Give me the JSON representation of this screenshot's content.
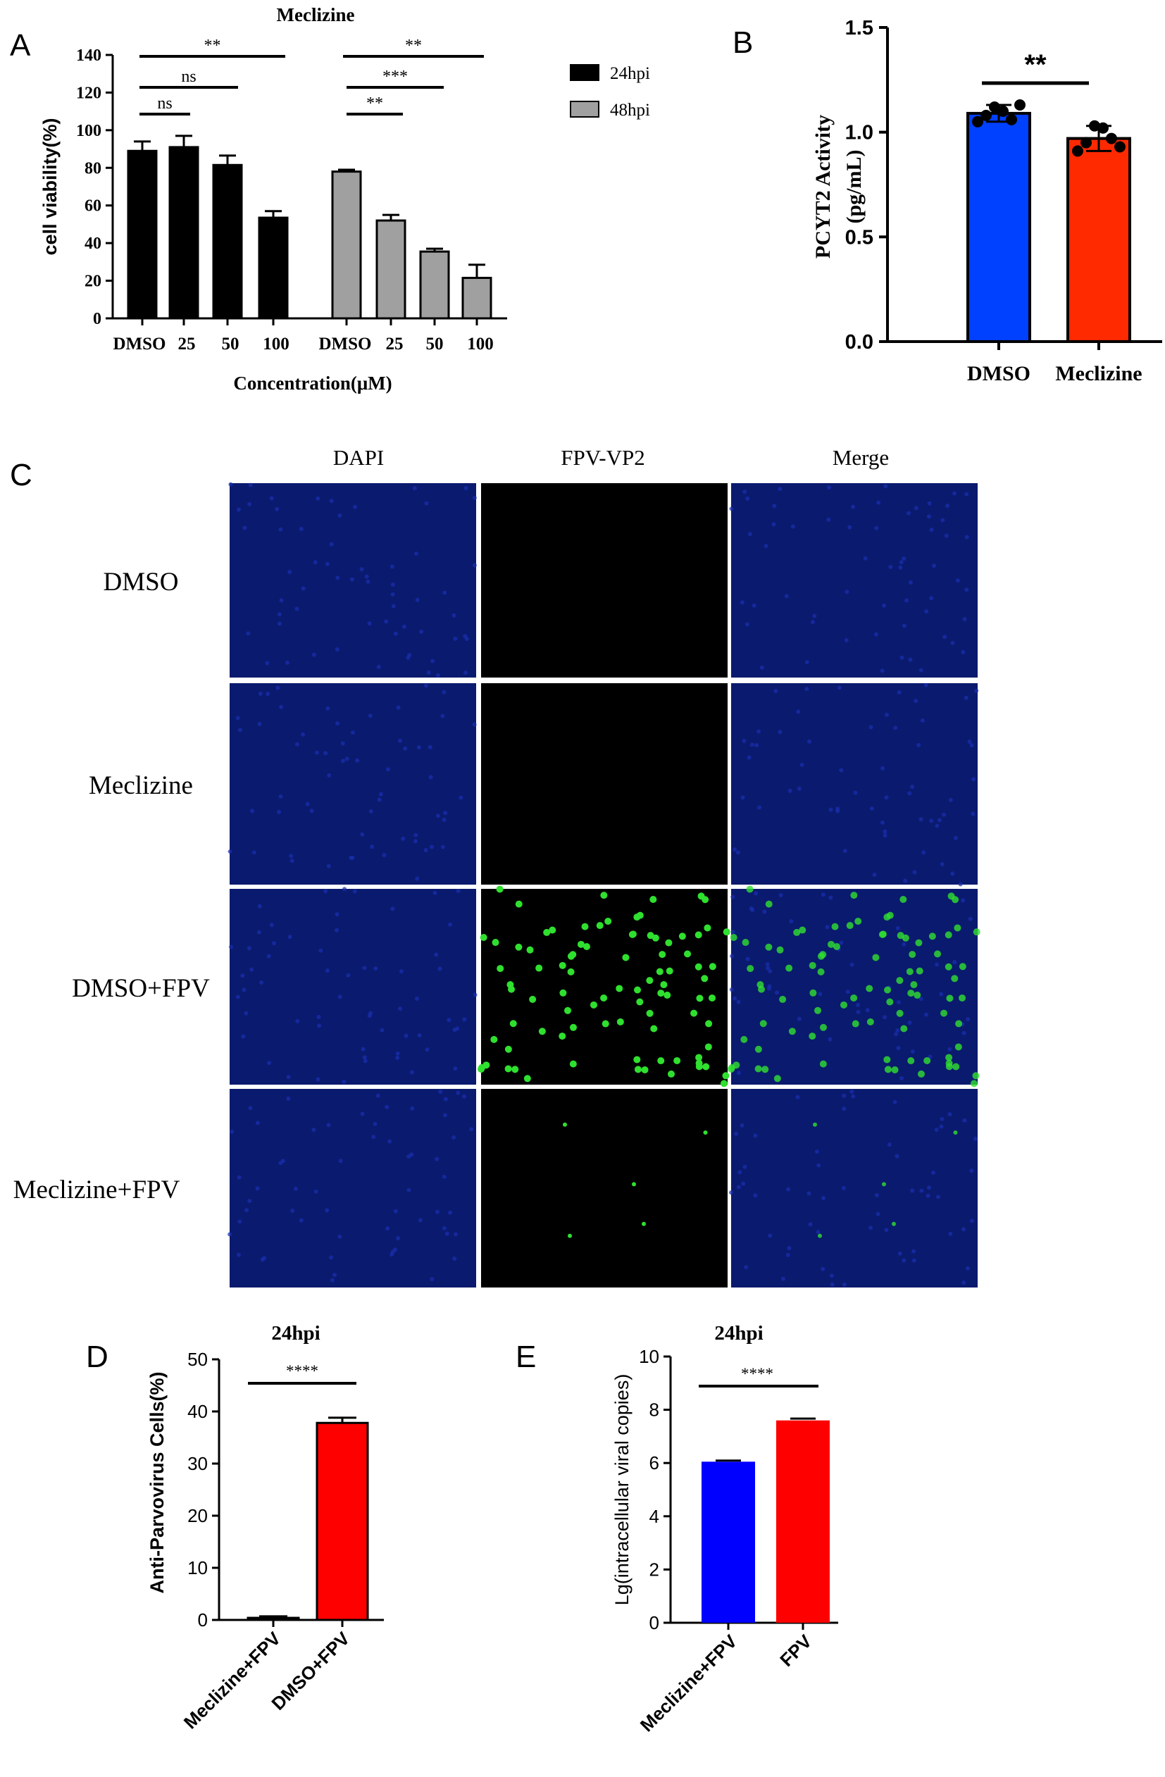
{
  "chart_data": [
    {
      "panel": "A",
      "type": "bar",
      "title": "Meclizine",
      "xlabel": "Concentration(μM)",
      "ylabel": "cell viability(%)",
      "ylim": [
        0,
        140
      ],
      "yticks": [
        "0",
        "20",
        "40",
        "60",
        "80",
        "100",
        "120",
        "140"
      ],
      "categories": [
        "DMSO",
        "25",
        "50",
        "100"
      ],
      "series": [
        {
          "name": "24hpi",
          "color": "#000000",
          "values": [
            89,
            91,
            81.5,
            53.5
          ],
          "errors": [
            5,
            6,
            5,
            3.5
          ]
        },
        {
          "name": "48hpi",
          "color": "#a0a0a0",
          "values": [
            78,
            52,
            35.5,
            21.5
          ],
          "errors": [
            1,
            3,
            1.5,
            7
          ]
        }
      ],
      "significance": [
        "**",
        "ns",
        "ns",
        "**",
        "***",
        "**"
      ],
      "legend_position": "top-right"
    },
    {
      "panel": "B",
      "type": "bar",
      "ylabel_line1": "PCYT2  Activity",
      "ylabel_line2": "(pg/mL)",
      "ylim": [
        0,
        1.5
      ],
      "yticks": [
        "0.0",
        "0.5",
        "1.0",
        "1.5"
      ],
      "categories": [
        "DMSO",
        "Meclizine"
      ],
      "values": [
        1.09,
        0.97
      ],
      "errors": [
        0.04,
        0.06
      ],
      "colors": [
        "#0040ff",
        "#ff2a00"
      ],
      "points": [
        [
          1.05,
          1.08,
          1.12,
          1.1,
          1.06,
          1.13
        ],
        [
          0.91,
          0.95,
          1.03,
          1.02,
          0.97,
          0.93
        ]
      ],
      "significance": "**"
    },
    {
      "panel": "D",
      "type": "bar",
      "title": "24hpi",
      "ylabel": "Anti-Parvovirus Cells(%)",
      "ylim": [
        0,
        50
      ],
      "yticks": [
        "0",
        "10",
        "20",
        "30",
        "40",
        "50"
      ],
      "categories": [
        "Meclizine+FPV",
        "DMSO+FPV"
      ],
      "values": [
        0.4,
        37.8
      ],
      "errors": [
        0.3,
        1.0
      ],
      "colors": [
        "#ff0000",
        "#ff0000"
      ],
      "significance": "****"
    },
    {
      "panel": "E",
      "type": "bar",
      "title": "24hpi",
      "ylabel": "Lg(intracellular viral copies)",
      "ylim": [
        0,
        10
      ],
      "yticks": [
        "0",
        "2",
        "4",
        "6",
        "8",
        "10"
      ],
      "categories": [
        "Meclizine+FPV",
        "FPV"
      ],
      "values": [
        6.05,
        7.6
      ],
      "errors": [
        0.04,
        0.07
      ],
      "colors": [
        "#0000ff",
        "#ff0000"
      ],
      "significance": "****"
    }
  ],
  "panel_letters": {
    "a": "A",
    "b": "B",
    "c": "C",
    "d": "D",
    "e": "E"
  },
  "microscopy": {
    "columns": [
      "DAPI",
      "FPV-VP2",
      "Merge"
    ],
    "rows": [
      "DMSO",
      "Meclizine",
      "DMSO+FPV",
      "Meclizine+FPV"
    ],
    "colors": {
      "dapi": "#0a1a6e",
      "vp2_positive": "#2fe02f",
      "empty": "#000000"
    }
  }
}
